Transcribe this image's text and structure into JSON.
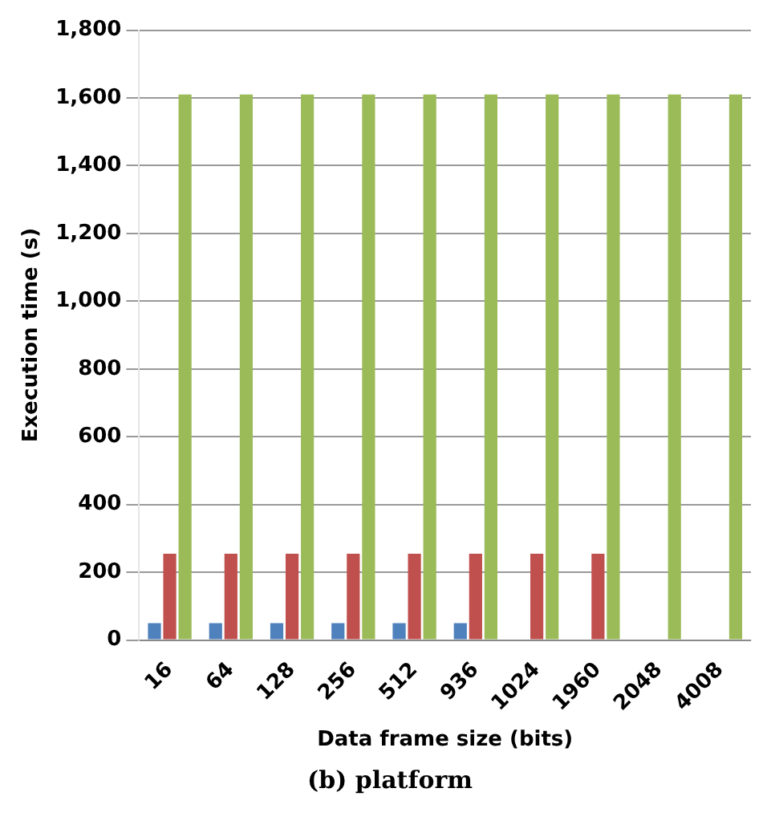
{
  "chart_data": {
    "type": "bar",
    "xlabel": "Data frame size (bits)",
    "ylabel": "Execution time (s)",
    "categories": [
      "16",
      "64",
      "128",
      "256",
      "512",
      "936",
      "1024",
      "1960",
      "2048",
      "4008"
    ],
    "series": [
      {
        "color": "#4f81bd",
        "values": [
          50,
          50,
          50,
          50,
          50,
          50,
          null,
          null,
          null,
          null
        ]
      },
      {
        "color": "#c0504d",
        "values": [
          255,
          255,
          255,
          255,
          255,
          255,
          255,
          255,
          null,
          null
        ]
      },
      {
        "color": "#9bbb59",
        "values": [
          1610,
          1610,
          1610,
          1610,
          1610,
          1610,
          1610,
          1610,
          1610,
          1610
        ]
      }
    ],
    "ylim": [
      0,
      1800
    ],
    "yticks": [
      {
        "value": 0,
        "label": "0"
      },
      {
        "value": 200,
        "label": "200"
      },
      {
        "value": 400,
        "label": "400"
      },
      {
        "value": 600,
        "label": "600"
      },
      {
        "value": 800,
        "label": "800"
      },
      {
        "value": 1000,
        "label": "1,000"
      },
      {
        "value": 1200,
        "label": "1,200"
      },
      {
        "value": 1400,
        "label": "1,400"
      },
      {
        "value": 1600,
        "label": "1,600"
      },
      {
        "value": 1800,
        "label": "1,800"
      }
    ],
    "grid": "y",
    "legend": false,
    "annotations": [
      "(b) platform"
    ]
  }
}
